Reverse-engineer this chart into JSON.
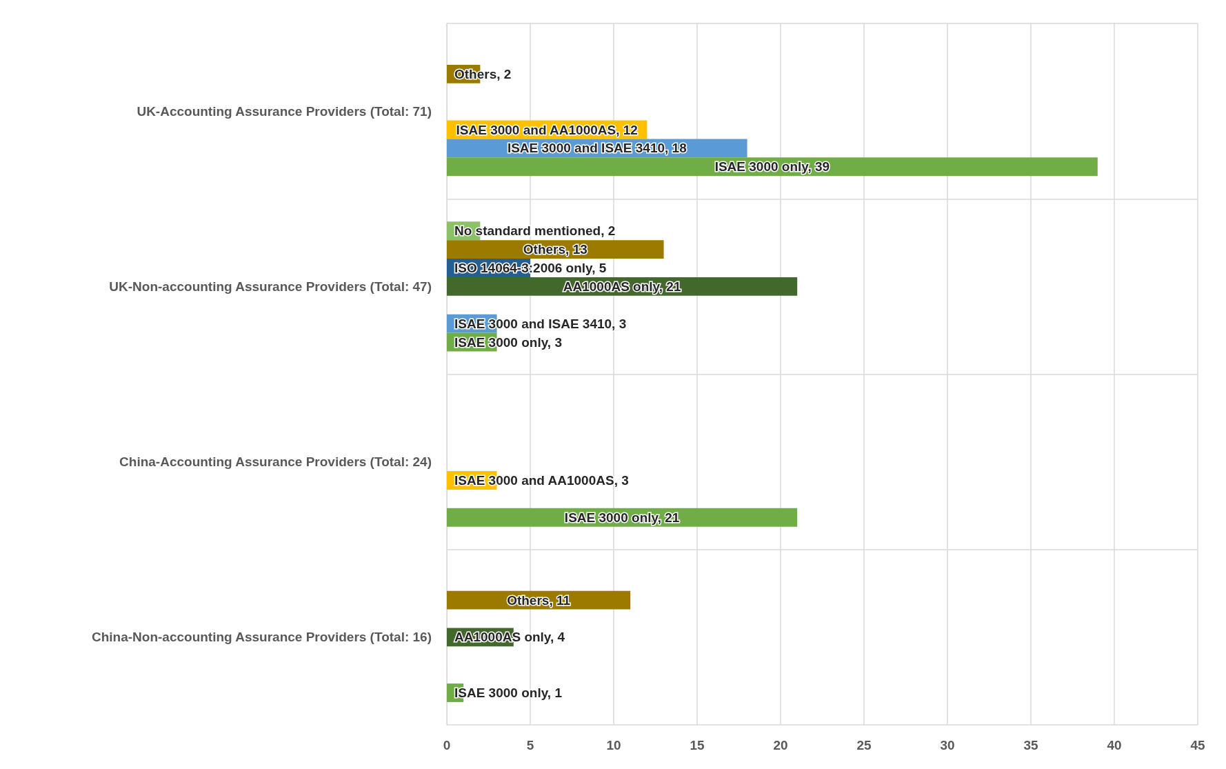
{
  "chart_data": {
    "type": "bar",
    "orientation": "horizontal",
    "categories": [
      "UK-Accounting Assurance Providers (Total: 71)",
      "UK-Non-accounting Assurance Providers (Total: 47)",
      "China-Accounting Assurance Providers (Total: 24)",
      "China-Non-accounting Assurance Providers (Total: 16)"
    ],
    "series": [
      {
        "color": "#8cc168",
        "values": [
          null,
          2,
          null,
          null
        ],
        "value_labels": [
          null,
          "No standard mentioned, 2",
          null,
          null
        ]
      },
      {
        "color": "#9c7a00",
        "values": [
          2,
          13,
          null,
          11
        ],
        "value_labels": [
          "Others, 2",
          "Others, 13",
          null,
          "Others, 11"
        ]
      },
      {
        "color": "#255e91",
        "values": [
          null,
          5,
          null,
          null
        ],
        "value_labels": [
          null,
          "ISO 14064-3:2006 only, 5",
          null,
          null
        ]
      },
      {
        "color": "#43682b",
        "values": [
          null,
          21,
          null,
          4
        ],
        "value_labels": [
          null,
          "AA1000AS only, 21",
          null,
          "AA1000AS only, 4"
        ]
      },
      {
        "color": "#ffc000",
        "values": [
          12,
          null,
          3,
          null
        ],
        "value_labels": [
          "ISAE 3000 and AA1000AS, 12",
          null,
          "ISAE 3000 and AA1000AS, 3",
          null
        ]
      },
      {
        "color": "#5b9bd5",
        "values": [
          18,
          3,
          null,
          null
        ],
        "value_labels": [
          "ISAE 3000 and ISAE 3410, 18",
          "ISAE 3000 and ISAE 3410, 3",
          null,
          null
        ]
      },
      {
        "color": "#70ad47",
        "values": [
          39,
          3,
          21,
          1
        ],
        "value_labels": [
          "ISAE 3000 only, 39",
          "ISAE 3000 only, 3",
          "ISAE 3000 only, 21",
          "ISAE 3000 only, 1"
        ]
      }
    ],
    "xlim": [
      0,
      45
    ],
    "xticks": [
      0,
      5,
      10,
      15,
      20,
      25,
      30,
      35,
      40,
      45
    ],
    "grid": true
  }
}
